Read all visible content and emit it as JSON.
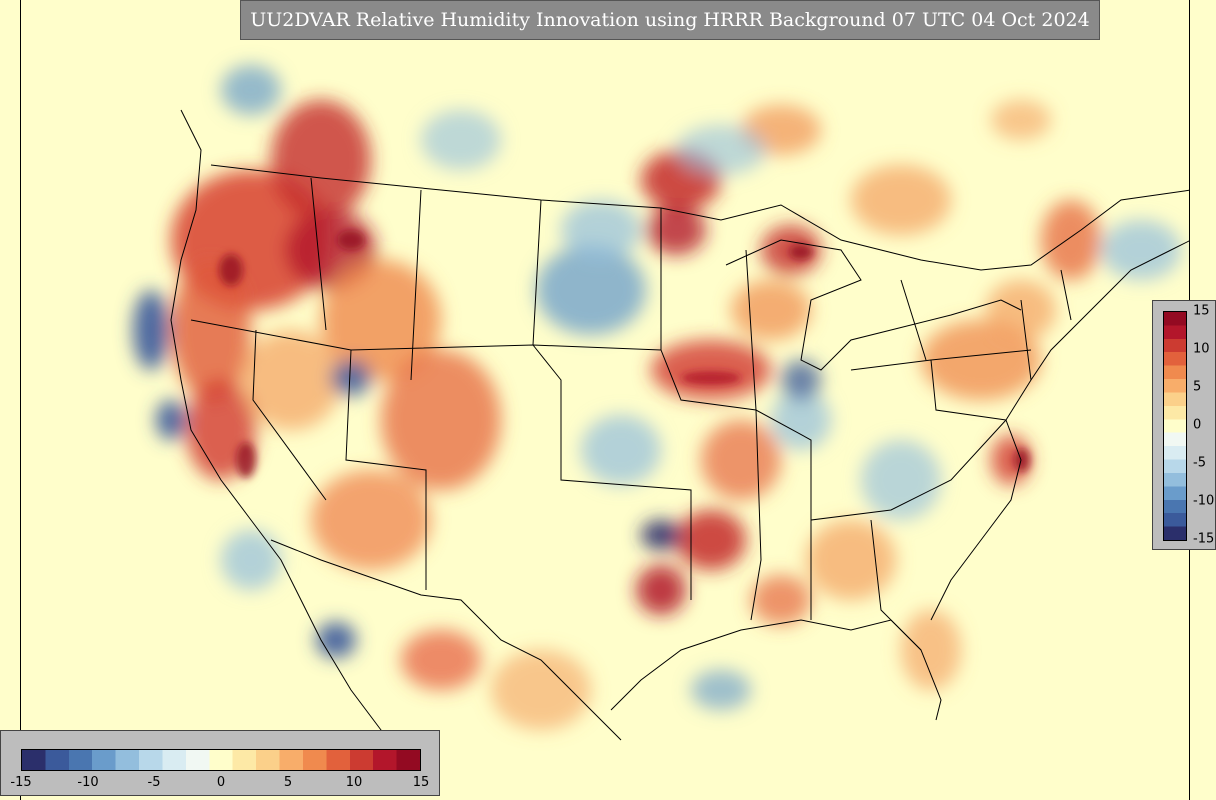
{
  "title": "UU2DVAR Relative Humidity Innovation using HRRR Background 07 UTC 04 Oct 2024",
  "colorbar": {
    "min": -15,
    "max": 15,
    "h_ticks": [
      "-15",
      "-10",
      "-5",
      "0",
      "5",
      "10",
      "15"
    ],
    "v_ticks": [
      "15",
      "10",
      "5",
      "0",
      "-5",
      "-10",
      "-15"
    ],
    "colors": [
      "#2b2f6b",
      "#3b5a9b",
      "#4a76b0",
      "#6a9ccb",
      "#93bedd",
      "#b8d8ea",
      "#d9ecf2",
      "#f1f8f3",
      "#fffecb",
      "#fde9a6",
      "#fbd08a",
      "#f8ad6a",
      "#f08a4e",
      "#e2613c",
      "#cc3b31",
      "#b3162b",
      "#930a22"
    ]
  },
  "map": {
    "region": "CONUS",
    "background_color": "#fffecb",
    "border_color": "#000000"
  }
}
